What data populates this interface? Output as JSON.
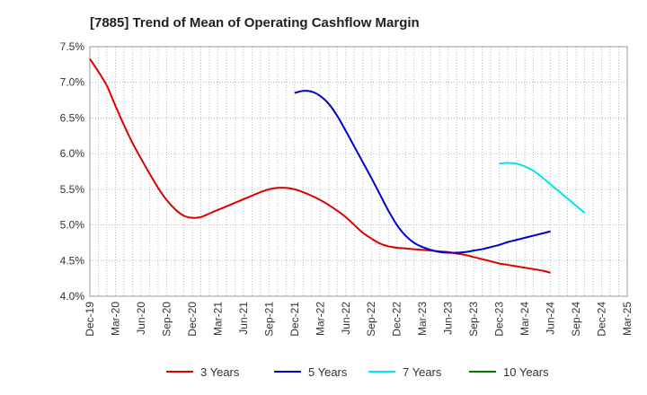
{
  "chart_data": {
    "type": "line",
    "title": "[7885]  Trend of Mean of Operating Cashflow Margin",
    "xlabel": "",
    "ylabel": "",
    "x_ticks": [
      "Dec-19",
      "Mar-20",
      "Jun-20",
      "Sep-20",
      "Dec-20",
      "Mar-21",
      "Jun-21",
      "Sep-21",
      "Dec-21",
      "Mar-22",
      "Jun-22",
      "Sep-22",
      "Dec-22",
      "Mar-23",
      "Jun-23",
      "Sep-23",
      "Dec-23",
      "Mar-24",
      "Jun-24",
      "Sep-24",
      "Dec-24",
      "Mar-25"
    ],
    "y_ticks": [
      "4.0%",
      "4.5%",
      "5.0%",
      "5.5%",
      "6.0%",
      "6.5%",
      "7.0%",
      "7.5%"
    ],
    "ylim": [
      4.0,
      7.5
    ],
    "grid": true,
    "legend_position": "bottom",
    "series": [
      {
        "name": "3 Years",
        "color": "#dd0000",
        "points": [
          [
            "Dec-19",
            7.33
          ],
          [
            "Jan-20",
            7.15
          ],
          [
            "Feb-20",
            6.95
          ],
          [
            "Mar-20",
            6.67
          ],
          [
            "Apr-20",
            6.4
          ],
          [
            "May-20",
            6.15
          ],
          [
            "Jun-20",
            5.93
          ],
          [
            "Jul-20",
            5.72
          ],
          [
            "Aug-20",
            5.52
          ],
          [
            "Sep-20",
            5.35
          ],
          [
            "Oct-20",
            5.22
          ],
          [
            "Nov-20",
            5.13
          ],
          [
            "Dec-20",
            5.1
          ],
          [
            "Jan-21",
            5.11
          ],
          [
            "Feb-21",
            5.16
          ],
          [
            "Mar-21",
            5.21
          ],
          [
            "Apr-21",
            5.26
          ],
          [
            "May-21",
            5.31
          ],
          [
            "Jun-21",
            5.36
          ],
          [
            "Jul-21",
            5.41
          ],
          [
            "Aug-21",
            5.46
          ],
          [
            "Sep-21",
            5.5
          ],
          [
            "Oct-21",
            5.52
          ],
          [
            "Nov-21",
            5.52
          ],
          [
            "Dec-21",
            5.5
          ],
          [
            "Jan-22",
            5.46
          ],
          [
            "Feb-22",
            5.41
          ],
          [
            "Mar-22",
            5.35
          ],
          [
            "Apr-22",
            5.28
          ],
          [
            "May-22",
            5.2
          ],
          [
            "Jun-22",
            5.11
          ],
          [
            "Jul-22",
            5.0
          ],
          [
            "Aug-22",
            4.89
          ],
          [
            "Sep-22",
            4.81
          ],
          [
            "Oct-22",
            4.74
          ],
          [
            "Nov-22",
            4.7
          ],
          [
            "Dec-22",
            4.68
          ],
          [
            "Jan-23",
            4.67
          ],
          [
            "Feb-23",
            4.66
          ],
          [
            "Mar-23",
            4.65
          ],
          [
            "Apr-23",
            4.64
          ],
          [
            "May-23",
            4.63
          ],
          [
            "Jun-23",
            4.62
          ],
          [
            "Jul-23",
            4.6
          ],
          [
            "Aug-23",
            4.58
          ],
          [
            "Sep-23",
            4.55
          ],
          [
            "Oct-23",
            4.52
          ],
          [
            "Nov-23",
            4.49
          ],
          [
            "Dec-23",
            4.46
          ],
          [
            "Jan-24",
            4.44
          ],
          [
            "Feb-24",
            4.42
          ],
          [
            "Mar-24",
            4.4
          ],
          [
            "Apr-24",
            4.38
          ],
          [
            "May-24",
            4.36
          ],
          [
            "Jun-24",
            4.33
          ]
        ]
      },
      {
        "name": "5 Years",
        "color": "#0000cc",
        "points": [
          [
            "Dec-21",
            6.85
          ],
          [
            "Jan-22",
            6.88
          ],
          [
            "Feb-22",
            6.87
          ],
          [
            "Mar-22",
            6.81
          ],
          [
            "Apr-22",
            6.7
          ],
          [
            "May-22",
            6.53
          ],
          [
            "Jun-22",
            6.32
          ],
          [
            "Jul-22",
            6.1
          ],
          [
            "Aug-22",
            5.88
          ],
          [
            "Sep-22",
            5.66
          ],
          [
            "Oct-22",
            5.43
          ],
          [
            "Nov-22",
            5.2
          ],
          [
            "Dec-22",
            5.0
          ],
          [
            "Jan-23",
            4.85
          ],
          [
            "Feb-23",
            4.75
          ],
          [
            "Mar-23",
            4.69
          ],
          [
            "Apr-23",
            4.65
          ],
          [
            "May-23",
            4.62
          ],
          [
            "Jun-23",
            4.61
          ],
          [
            "Jul-23",
            4.61
          ],
          [
            "Aug-23",
            4.62
          ],
          [
            "Sep-23",
            4.64
          ],
          [
            "Oct-23",
            4.66
          ],
          [
            "Nov-23",
            4.69
          ],
          [
            "Dec-23",
            4.72
          ],
          [
            "Jan-24",
            4.76
          ],
          [
            "Feb-24",
            4.79
          ],
          [
            "Mar-24",
            4.82
          ],
          [
            "Apr-24",
            4.85
          ],
          [
            "May-24",
            4.88
          ],
          [
            "Jun-24",
            4.91
          ]
        ]
      },
      {
        "name": "7 Years",
        "color": "#00e5ee",
        "points": [
          [
            "Dec-23",
            5.86
          ],
          [
            "Jan-24",
            5.87
          ],
          [
            "Feb-24",
            5.86
          ],
          [
            "Mar-24",
            5.82
          ],
          [
            "Apr-24",
            5.76
          ],
          [
            "May-24",
            5.67
          ],
          [
            "Jun-24",
            5.57
          ],
          [
            "Jul-24",
            5.47
          ],
          [
            "Aug-24",
            5.37
          ],
          [
            "Sep-24",
            5.27
          ],
          [
            "Oct-24",
            5.17
          ]
        ]
      },
      {
        "name": "10 Years",
        "color": "#008000",
        "points": []
      }
    ]
  }
}
